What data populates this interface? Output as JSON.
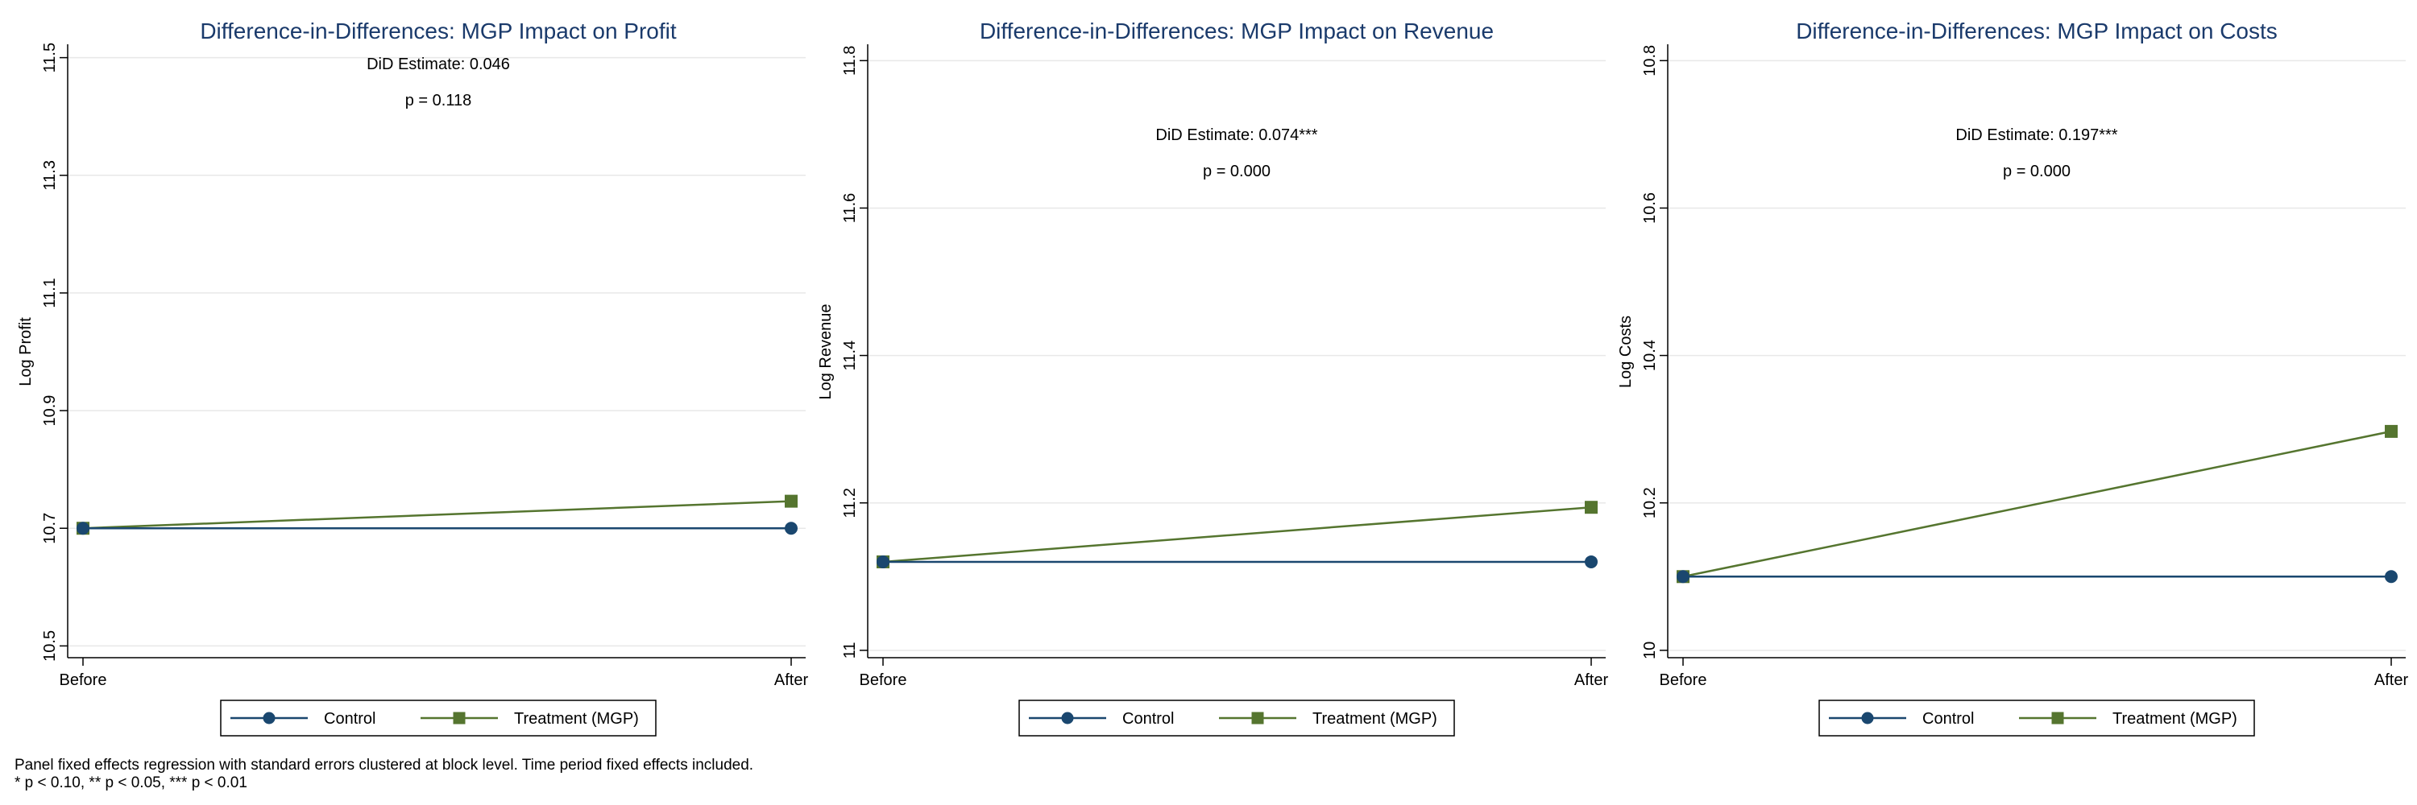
{
  "colors": {
    "control": "#1a476f",
    "treatment": "#55752f",
    "title": "#1a3a6b",
    "grid": "#e8e8e8",
    "axis": "#000000"
  },
  "legend": {
    "control_label": "Control",
    "treatment_label": "Treatment (MGP)",
    "placement": "bottom"
  },
  "footnote": {
    "line1": "Panel fixed effects regression with standard errors clustered at block level. Time period fixed effects included.",
    "line2": "* p < 0.10, ** p < 0.05, *** p < 0.01"
  },
  "chart_data": [
    {
      "type": "line",
      "title": "Difference-in-Differences: MGP Impact on Profit",
      "xlabel": "",
      "ylabel": "Log Profit",
      "categories": [
        "Before",
        "After"
      ],
      "ylim": [
        10.48,
        11.52
      ],
      "yticks": [
        10.5,
        10.7,
        10.9,
        11.1,
        11.3,
        11.5
      ],
      "grid": true,
      "annotation": [
        "DiD Estimate: 0.046",
        "p = 0.118"
      ],
      "series": [
        {
          "name": "Control",
          "values": [
            10.7,
            10.7
          ],
          "marker": "circle"
        },
        {
          "name": "Treatment (MGP)",
          "values": [
            10.7,
            10.746
          ],
          "marker": "square"
        }
      ]
    },
    {
      "type": "line",
      "title": "Difference-in-Differences: MGP Impact on Revenue",
      "xlabel": "",
      "ylabel": "Log Revenue",
      "categories": [
        "Before",
        "After"
      ],
      "ylim": [
        10.99,
        11.82
      ],
      "yticks": [
        11,
        11.2,
        11.4,
        11.6,
        11.8
      ],
      "grid": true,
      "annotation": [
        "DiD Estimate: 0.074***",
        "p = 0.000"
      ],
      "series": [
        {
          "name": "Control",
          "values": [
            11.12,
            11.12
          ],
          "marker": "circle"
        },
        {
          "name": "Treatment (MGP)",
          "values": [
            11.12,
            11.194
          ],
          "marker": "square"
        }
      ]
    },
    {
      "type": "line",
      "title": "Difference-in-Differences: MGP Impact on Costs",
      "xlabel": "",
      "ylabel": "Log Costs",
      "categories": [
        "Before",
        "After"
      ],
      "ylim": [
        9.99,
        10.82
      ],
      "yticks": [
        10,
        10.2,
        10.4,
        10.6,
        10.8
      ],
      "grid": true,
      "annotation": [
        "DiD Estimate: 0.197***",
        "p = 0.000"
      ],
      "series": [
        {
          "name": "Control",
          "values": [
            10.1,
            10.1
          ],
          "marker": "circle"
        },
        {
          "name": "Treatment (MGP)",
          "values": [
            10.1,
            10.297
          ],
          "marker": "square"
        }
      ]
    }
  ]
}
